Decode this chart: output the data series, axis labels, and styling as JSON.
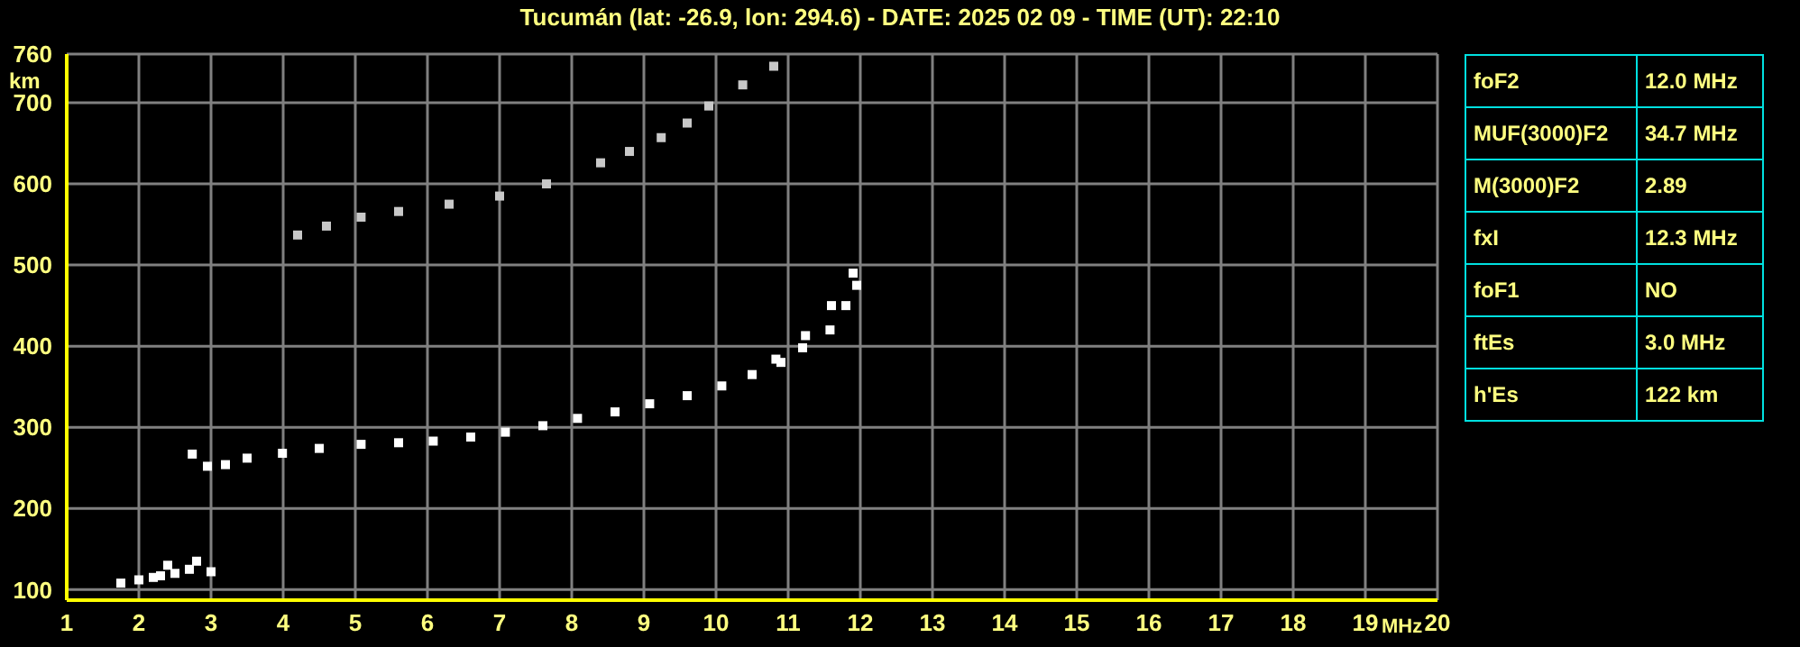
{
  "chart_data": {
    "type": "scatter",
    "title": "Tucumán (lat: -26.9, lon: 294.6) - DATE: 2025 02 09 - TIME (UT): 22:10",
    "xlabel": "MHz",
    "ylabel": "km",
    "xlim": [
      1,
      20
    ],
    "xticks": [
      1,
      2,
      3,
      4,
      5,
      6,
      7,
      8,
      9,
      10,
      11,
      12,
      13,
      14,
      15,
      16,
      17,
      18,
      19,
      20
    ],
    "ylim": [
      87,
      760
    ],
    "yticks": [
      100,
      200,
      300,
      400,
      500,
      600,
      700,
      760
    ],
    "grid": true,
    "marker": "square",
    "series": [
      {
        "color": "#ffffff",
        "x": [
          2.74,
          2.95,
          3.2,
          3.5,
          3.99,
          4.5,
          5.08,
          5.6,
          6.08,
          6.6,
          7.08,
          7.6,
          8.08,
          8.6,
          9.08,
          9.6,
          10.08,
          10.5,
          10.83,
          11.24,
          11.6,
          11.9
        ],
        "values": [
          267,
          252,
          254,
          262,
          268,
          274,
          279,
          281,
          283,
          288,
          294,
          302,
          311,
          319,
          329,
          339,
          351,
          365,
          384,
          413,
          450,
          490
        ]
      },
      {
        "color": "#ffffff",
        "x": [
          10.9,
          11.2,
          11.58,
          11.8,
          11.95
        ],
        "values": [
          380,
          398,
          420,
          450,
          475
        ]
      },
      {
        "color": "#c8c8c8",
        "x": [
          4.2,
          4.6,
          5.08,
          5.6,
          6.3,
          7.0,
          7.65,
          8.4,
          8.8,
          9.24,
          9.6,
          9.9,
          10.37,
          10.8
        ],
        "values": [
          537,
          548,
          559,
          566,
          575,
          585,
          600,
          626,
          640,
          657,
          675,
          696,
          722,
          745
        ]
      },
      {
        "color": "#ffffff",
        "x": [
          1.75,
          2.0,
          2.2,
          2.3,
          2.4,
          2.5,
          2.7,
          2.8,
          3.0
        ],
        "values": [
          108,
          112,
          115,
          117,
          130,
          120,
          125,
          135,
          122
        ]
      }
    ],
    "annotations": [
      "foF2",
      "12.0 MHz",
      "MUF(3000)F2",
      "34.7 MHz",
      "M(3000)F2",
      "2.89",
      "fxI",
      "12.3 MHz",
      "foF1",
      "NO",
      "ftEs",
      "3.0 MHz",
      "h'Es",
      "122 km"
    ]
  }
}
